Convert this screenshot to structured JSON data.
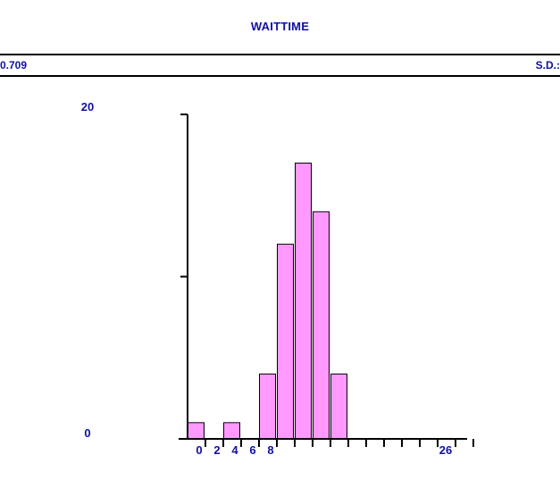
{
  "header": {
    "title": "WAITTIME",
    "stat_left": "0.709",
    "stat_right": "S.D.:"
  },
  "colors": {
    "bar_fill": "#ff99ff",
    "text": "#1010a0"
  },
  "chart_data": {
    "type": "bar",
    "title": "WAITTIME",
    "xlabel": "",
    "ylabel": "",
    "ylim": [
      0,
      20
    ],
    "y_ticks": [
      0,
      20
    ],
    "x_tick_labels": [
      "0",
      "2",
      "4",
      "6",
      "8",
      "26"
    ],
    "bin_width": 1,
    "bins": [
      {
        "x": 0,
        "count": 1
      },
      {
        "x": 1,
        "count": 0
      },
      {
        "x": 2,
        "count": 1
      },
      {
        "x": 3,
        "count": 0
      },
      {
        "x": 4,
        "count": 4
      },
      {
        "x": 5,
        "count": 12
      },
      {
        "x": 6,
        "count": 17
      },
      {
        "x": 7,
        "count": 14
      },
      {
        "x": 8,
        "count": 4
      }
    ],
    "x_tick_count": 16
  }
}
